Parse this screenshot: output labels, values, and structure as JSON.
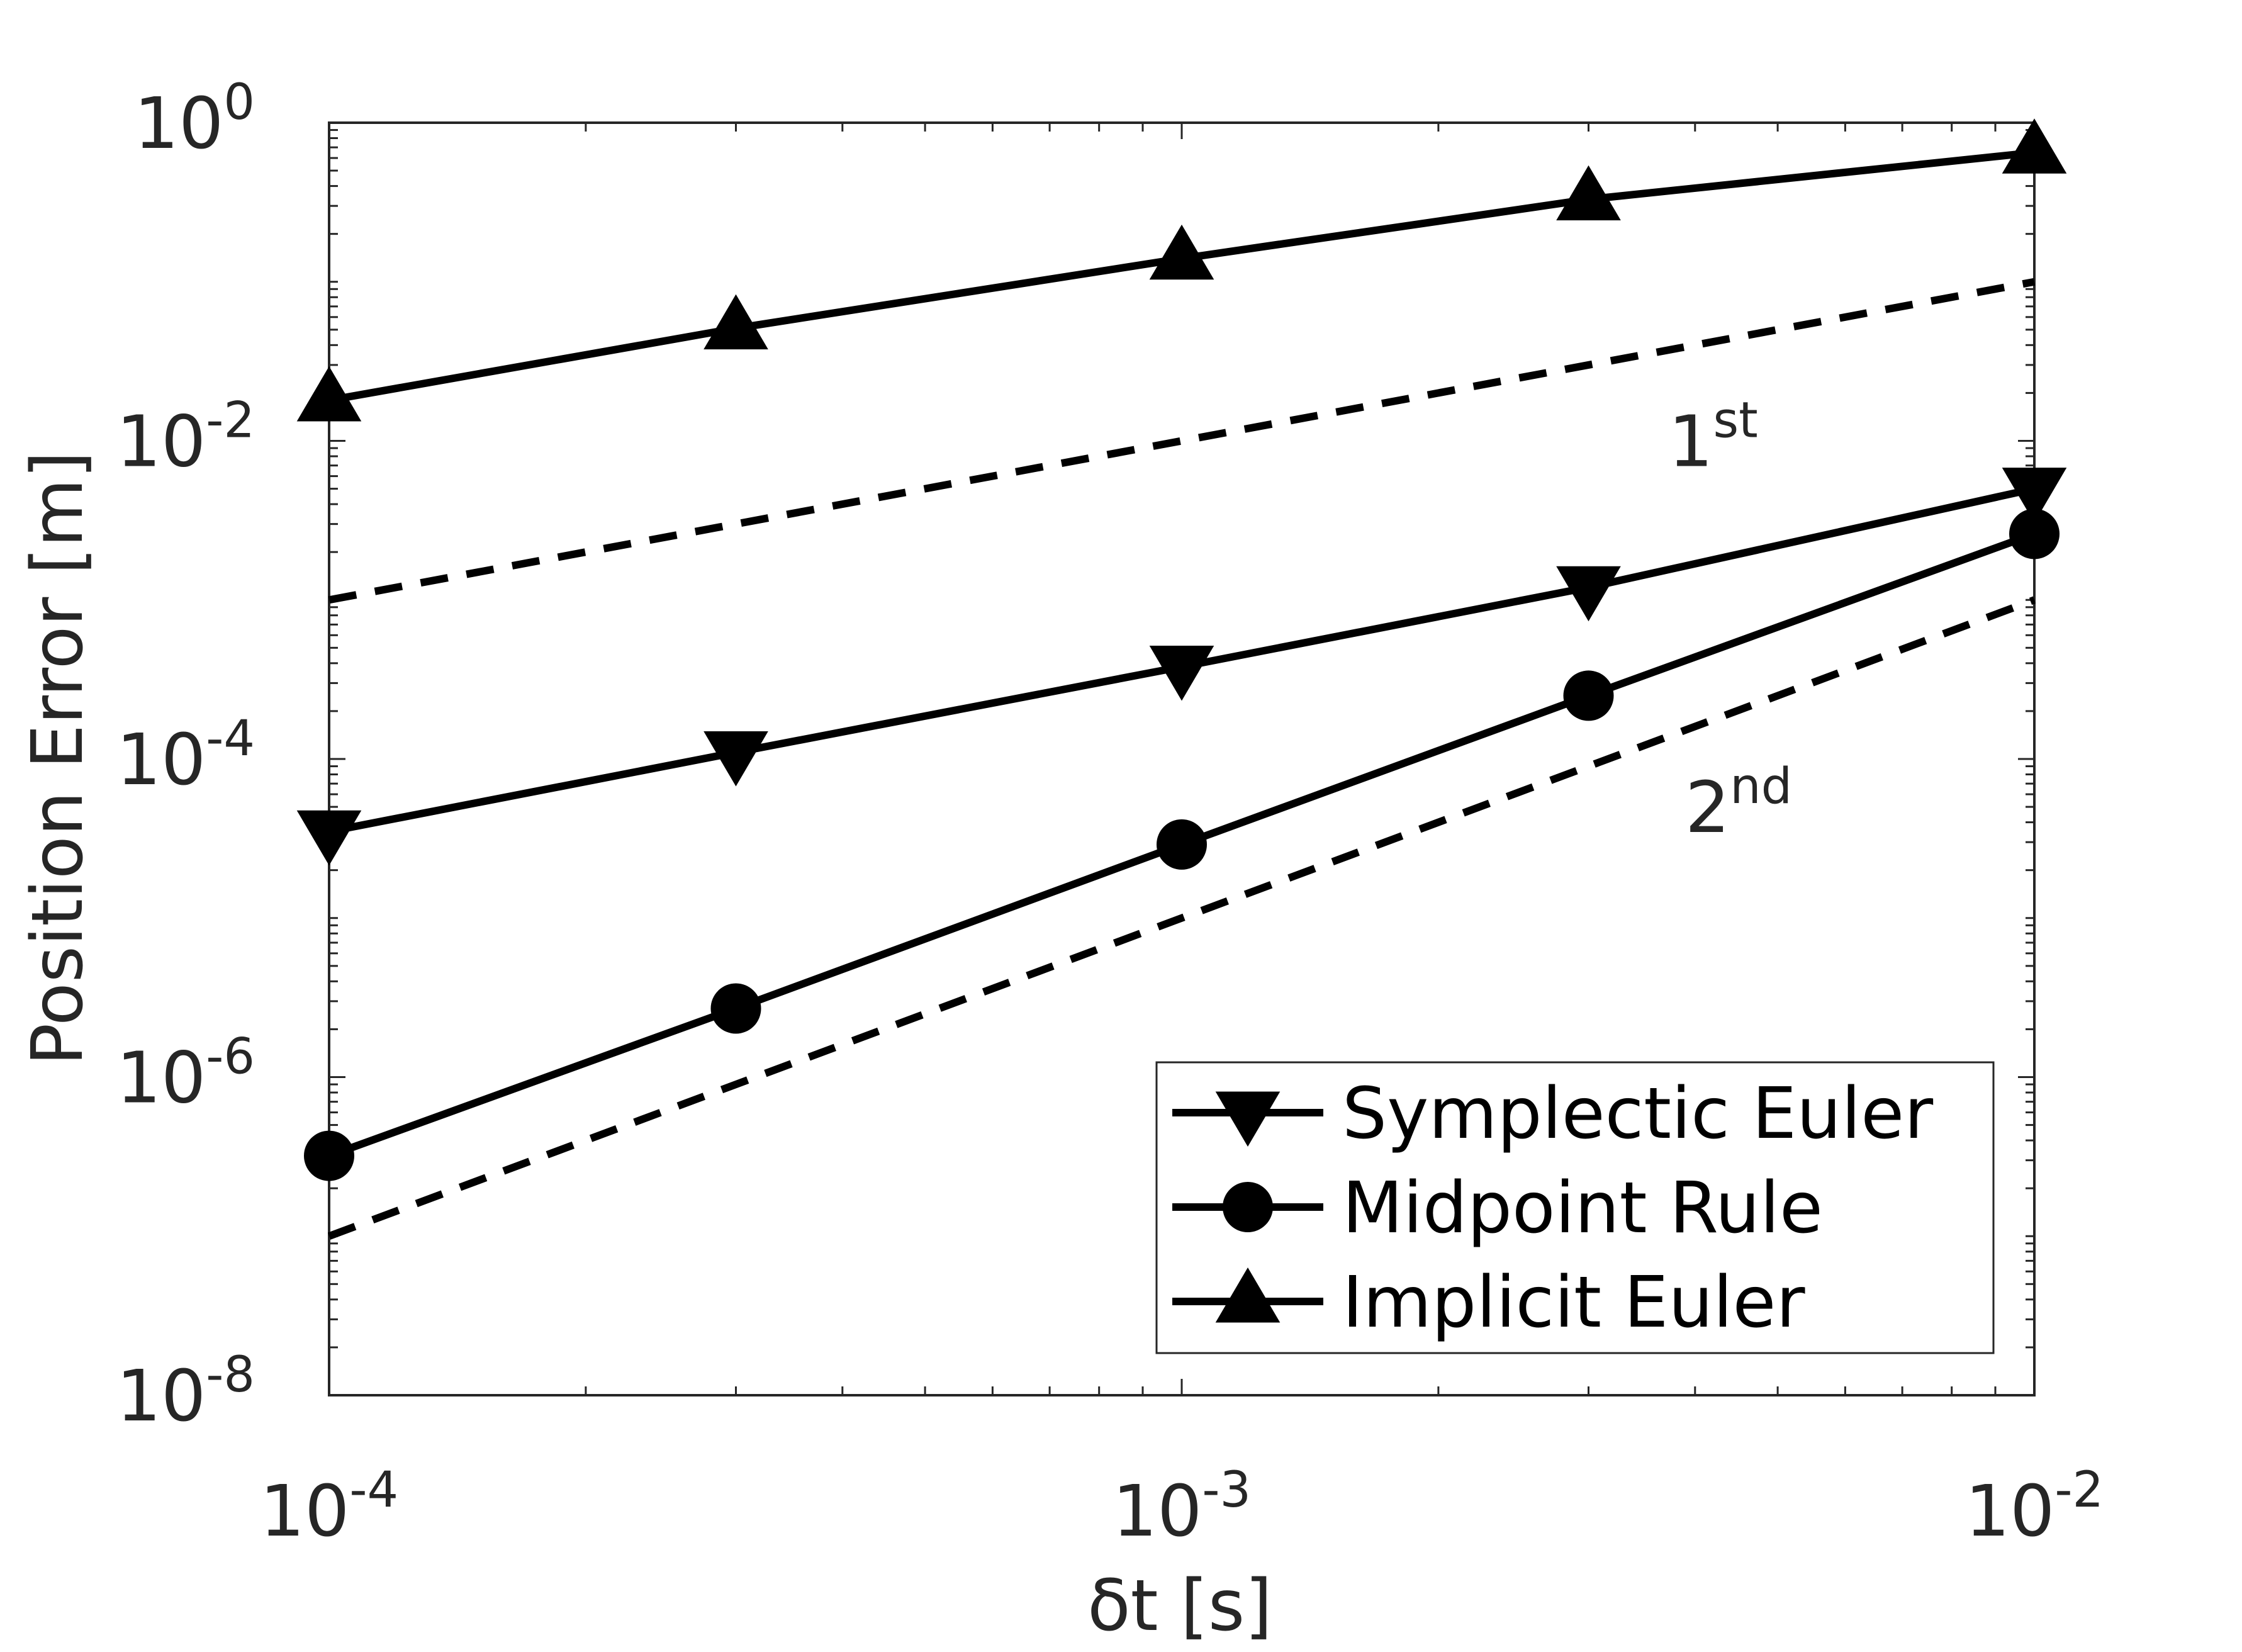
{
  "chart_data": {
    "type": "line",
    "xscale": "log",
    "yscale": "log",
    "xlim": [
      0.0001,
      0.01
    ],
    "ylim": [
      1e-08,
      1
    ],
    "xlabel": "δt [s]",
    "ylabel": "Position Error [m]",
    "xticks": [
      {
        "value": 0.0001,
        "base": "10",
        "exp": "-4"
      },
      {
        "value": 0.001,
        "base": "10",
        "exp": "-3"
      },
      {
        "value": 0.01,
        "base": "10",
        "exp": "-2"
      }
    ],
    "yticks": [
      {
        "value": 1,
        "base": "10",
        "exp": "0"
      },
      {
        "value": 0.01,
        "base": "10",
        "exp": "-2"
      },
      {
        "value": 0.0001,
        "base": "10",
        "exp": "-4"
      },
      {
        "value": 1e-06,
        "base": "10",
        "exp": "-6"
      },
      {
        "value": 1e-08,
        "base": "10",
        "exp": "-8"
      }
    ],
    "grid": false,
    "legend_position": "bottom-right",
    "series": [
      {
        "name": "Symplectic Euler",
        "marker": "triangle-down",
        "color": "#000000",
        "x": [
          0.0001,
          0.0003,
          0.001,
          0.003,
          0.01
        ],
        "y": [
          3.5e-05,
          0.00011,
          0.00038,
          0.0012,
          0.005
        ]
      },
      {
        "name": "Midpoint Rule",
        "marker": "circle",
        "color": "#000000",
        "x": [
          0.0001,
          0.0003,
          0.001,
          0.003,
          0.01
        ],
        "y": [
          3.2e-07,
          2.7e-06,
          2.9e-05,
          0.00025,
          0.0026
        ]
      },
      {
        "name": "Implicit Euler",
        "marker": "triangle-up",
        "color": "#000000",
        "x": [
          0.0001,
          0.0003,
          0.001,
          0.003,
          0.01
        ],
        "y": [
          0.018,
          0.051,
          0.14,
          0.33,
          0.65
        ]
      }
    ],
    "reference_lines": [
      {
        "x": [
          0.0001,
          0.01
        ],
        "y": [
          0.001,
          0.1
        ],
        "style": "dashed",
        "color": "#000000"
      },
      {
        "x": [
          0.0001,
          0.01
        ],
        "y": [
          1e-07,
          0.001
        ],
        "style": "dashed",
        "color": "#000000"
      }
    ],
    "annotations": [
      {
        "id": "first",
        "base": "1",
        "sup": "st",
        "x": 0.0042,
        "y": 0.01
      },
      {
        "id": "second",
        "base": "2",
        "sup": "nd",
        "x": 0.0045,
        "y": 5e-05
      }
    ]
  }
}
